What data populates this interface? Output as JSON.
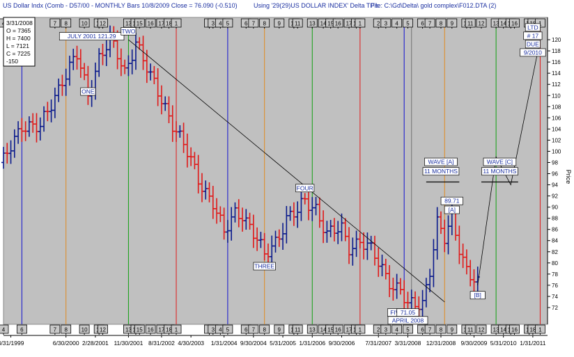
{
  "header": {
    "title": "US Dollar Indx (Comb - D57/00  - MONTHLY Bars  10/8/2009 Close = 76.090 (-0.510)",
    "study": "Using '29(29)US DOLLAR INDEX' Delta TP's",
    "file": "File:  C:\\Gd\\Delta\\ gold complex\\F012.DTA  (2)"
  },
  "info_box": {
    "lines": [
      "3/31/2008",
      "O = 7365",
      "H = 7400",
      "L = 7121",
      "C = 7225",
      "-150"
    ]
  },
  "chart_data": {
    "type": "bar",
    "subtype": "ohlc",
    "ylabel": "Price",
    "ylim": [
      69,
      124
    ],
    "yticks": [
      72,
      74,
      76,
      78,
      80,
      82,
      84,
      86,
      88,
      90,
      92,
      94,
      96,
      98,
      100,
      102,
      104,
      106,
      108,
      110,
      112,
      114,
      116,
      118,
      120
    ],
    "xlim": [
      "1999-01",
      "2011-05"
    ],
    "xticks": [
      {
        "label": "3/31/1999",
        "date": "1999-03"
      },
      {
        "label": "6/30/2000",
        "date": "2000-06"
      },
      {
        "label": "2/28/2001",
        "date": "2001-02"
      },
      {
        "label": "11/30/2001",
        "date": "2001-11"
      },
      {
        "label": "8/31/2002",
        "date": "2002-08"
      },
      {
        "label": "4/30/2003",
        "date": "2003-04"
      },
      {
        "label": "1/31/2004",
        "date": "2004-01"
      },
      {
        "label": "9/30/2004",
        "date": "2004-09"
      },
      {
        "label": "5/31/2005",
        "date": "2005-05"
      },
      {
        "label": "1/31/2006",
        "date": "2006-01"
      },
      {
        "label": "9/30/2006",
        "date": "2006-09"
      },
      {
        "label": "7/31/2007",
        "date": "2007-07"
      },
      {
        "label": "3/31/2008",
        "date": "2008-03"
      },
      {
        "label": "12/31/2008",
        "date": "2008-12"
      },
      {
        "label": "9/30/2009",
        "date": "2009-09"
      },
      {
        "label": "5/31/2010",
        "date": "2010-05"
      },
      {
        "label": "1/31/2011",
        "date": "2011-01"
      }
    ],
    "up_color": "#0a1a8c",
    "down_color": "#e01818",
    "bg_color": "#c0c0c0",
    "price_path": [
      [
        "1999-01",
        98
      ],
      [
        "1999-06",
        105
      ],
      [
        "1999-11",
        104
      ],
      [
        "2000-05",
        113
      ],
      [
        "2000-09",
        117
      ],
      [
        "2000-12",
        110
      ],
      [
        "2001-03",
        117
      ],
      [
        "2001-06",
        120
      ],
      [
        "2001-10",
        114
      ],
      [
        "2002-01",
        120
      ],
      [
        "2002-05",
        113
      ],
      [
        "2002-09",
        108
      ],
      [
        "2003-02",
        101
      ],
      [
        "2003-06",
        95
      ],
      [
        "2003-10",
        91
      ],
      [
        "2004-01",
        85
      ],
      [
        "2004-04",
        89
      ],
      [
        "2004-06",
        89
      ],
      [
        "2004-10",
        84
      ],
      [
        "2004-12",
        81
      ],
      [
        "2005-03",
        84
      ],
      [
        "2005-06",
        88
      ],
      [
        "2005-09",
        89
      ],
      [
        "2005-11",
        91
      ],
      [
        "2006-02",
        90
      ],
      [
        "2006-05",
        85
      ],
      [
        "2006-09",
        86
      ],
      [
        "2006-11",
        83
      ],
      [
        "2007-02",
        84
      ],
      [
        "2007-05",
        82
      ],
      [
        "2007-08",
        79
      ],
      [
        "2007-11",
        76
      ],
      [
        "2008-01",
        75
      ],
      [
        "2008-03",
        72
      ],
      [
        "2008-07",
        73
      ],
      [
        "2008-09",
        79
      ],
      [
        "2008-11",
        87
      ],
      [
        "2009-01",
        84
      ],
      [
        "2009-03",
        88
      ],
      [
        "2009-05",
        83
      ],
      [
        "2009-07",
        79
      ],
      [
        "2009-10",
        76
      ]
    ],
    "turning_points": [
      {
        "date": "1999-01",
        "label": "4"
      },
      {
        "date": "1999-06",
        "label": "6"
      },
      {
        "date": "2000-03",
        "label": "7"
      },
      {
        "date": "2000-06",
        "label": "8"
      },
      {
        "date": "2000-11",
        "label": "10"
      },
      {
        "date": "2001-03",
        "label": "11"
      },
      {
        "date": "2001-04",
        "label": "12"
      },
      {
        "date": "2001-11",
        "label": "13"
      },
      {
        "date": "2002-01",
        "label": "14"
      },
      {
        "date": "2002-02",
        "label": "15"
      },
      {
        "date": "2002-05",
        "label": "16"
      },
      {
        "date": "2002-08",
        "label": "17"
      },
      {
        "date": "2002-10",
        "label": "18"
      },
      {
        "date": "2002-12",
        "label": "1"
      },
      {
        "date": "2003-09",
        "label": "2"
      },
      {
        "date": "2003-10",
        "label": "3"
      },
      {
        "date": "2003-12",
        "label": "4"
      },
      {
        "date": "2004-02",
        "label": "5"
      },
      {
        "date": "2004-07",
        "label": "6"
      },
      {
        "date": "2004-09",
        "label": "7"
      },
      {
        "date": "2004-12",
        "label": "8"
      },
      {
        "date": "2005-04",
        "label": "9"
      },
      {
        "date": "2005-08",
        "label": "10"
      },
      {
        "date": "2005-09",
        "label": "11"
      },
      {
        "date": "2006-01",
        "label": "13"
      },
      {
        "date": "2006-04",
        "label": "14"
      },
      {
        "date": "2006-06",
        "label": "15"
      },
      {
        "date": "2006-08",
        "label": "16"
      },
      {
        "date": "2006-11",
        "label": "17"
      },
      {
        "date": "2007-01",
        "label": "18"
      },
      {
        "date": "2007-02",
        "label": "1"
      },
      {
        "date": "2007-07",
        "label": "2"
      },
      {
        "date": "2007-09",
        "label": "3"
      },
      {
        "date": "2007-12",
        "label": "4"
      },
      {
        "date": "2008-03",
        "label": "5"
      },
      {
        "date": "2008-07",
        "label": "6"
      },
      {
        "date": "2008-09",
        "label": "7"
      },
      {
        "date": "2008-12",
        "label": "8"
      },
      {
        "date": "2009-03",
        "label": "9"
      },
      {
        "date": "2009-07",
        "label": "10"
      },
      {
        "date": "2009-08",
        "label": "11"
      },
      {
        "date": "2009-11",
        "label": "12"
      },
      {
        "date": "2010-03",
        "label": "13"
      },
      {
        "date": "2010-05",
        "label": "14"
      },
      {
        "date": "2010-07",
        "label": "15"
      },
      {
        "date": "2010-08",
        "label": "16"
      },
      {
        "date": "2010-12",
        "label": "17"
      },
      {
        "date": "2011-01",
        "label": "18"
      },
      {
        "date": "2011-03",
        "label": "1"
      }
    ],
    "vertical_lines": [
      {
        "date": "1999-06",
        "color": "#1010d0"
      },
      {
        "date": "2000-06",
        "color": "#e08a20"
      },
      {
        "date": "2001-11",
        "color": "#10a010"
      },
      {
        "date": "2002-12",
        "color": "#e01818"
      },
      {
        "date": "2004-02",
        "color": "#1010d0"
      },
      {
        "date": "2004-12",
        "color": "#e08a20"
      },
      {
        "date": "2006-01",
        "color": "#10a010"
      },
      {
        "date": "2007-02",
        "color": "#e01818"
      },
      {
        "date": "2008-02",
        "color": "#1010d0"
      },
      {
        "date": "2008-04",
        "color": "#707070"
      },
      {
        "date": "2009-01",
        "color": "#e08a20"
      },
      {
        "date": "2010-03",
        "color": "#10a010"
      },
      {
        "date": "2011-03",
        "color": "#e01818"
      }
    ],
    "trendline": {
      "from": [
        "2001-11",
        120
      ],
      "to": [
        "2009-01",
        73
      ]
    },
    "projection": [
      [
        "2009-10",
        76
      ],
      [
        "2010-03",
        99
      ],
      [
        "2010-07",
        94
      ],
      [
        "2011-03",
        120
      ]
    ],
    "annotations": [
      {
        "text": "JULY 2001  121.29",
        "date": "2001-01",
        "y": 120.3
      },
      {
        "text": "TWO",
        "date": "2001-11",
        "y": 121.2
      },
      {
        "text": "ONE",
        "date": "2000-12",
        "y": 110.4
      },
      {
        "text": "THREE",
        "date": "2004-12",
        "y": 79.1
      },
      {
        "text": "FOUR",
        "date": "2005-11",
        "y": 93.1
      },
      {
        "text": "FIVE",
        "date": "2007-12",
        "y": 70.8
      },
      {
        "text": "71.05",
        "date": "2008-03",
        "y": 70.8
      },
      {
        "text": "APRIL 2008",
        "date": "2008-03",
        "y": 69.4
      },
      {
        "text": "89.71",
        "date": "2009-03",
        "y": 90.8
      },
      {
        "text": "[A]",
        "date": "2009-03",
        "y": 89.2
      },
      {
        "text": "[B]",
        "date": "2009-10",
        "y": 73.9
      },
      {
        "text": "WAVE [A]",
        "date": "2008-12",
        "y": 97.8
      },
      {
        "text": "11 MONTHS",
        "date": "2008-12",
        "y": 96.1
      },
      {
        "text": "WAVE [C]",
        "date": "2010-04",
        "y": 97.8
      },
      {
        "text": "11 MONTHS",
        "date": "2010-04",
        "y": 96.1
      },
      {
        "text": "LTD",
        "date": "2011-01",
        "y": 121.9
      },
      {
        "text": "# 17",
        "date": "2011-01",
        "y": 120.4
      },
      {
        "text": "DUE",
        "date": "2011-01",
        "y": 118.9
      },
      {
        "text": "9/2010",
        "date": "2011-01",
        "y": 117.4
      }
    ],
    "wave_underlines": [
      {
        "from": "2008-08",
        "to": "2009-05",
        "y": 94.5
      },
      {
        "from": "2009-11",
        "to": "2010-09",
        "y": 94.5
      }
    ]
  }
}
